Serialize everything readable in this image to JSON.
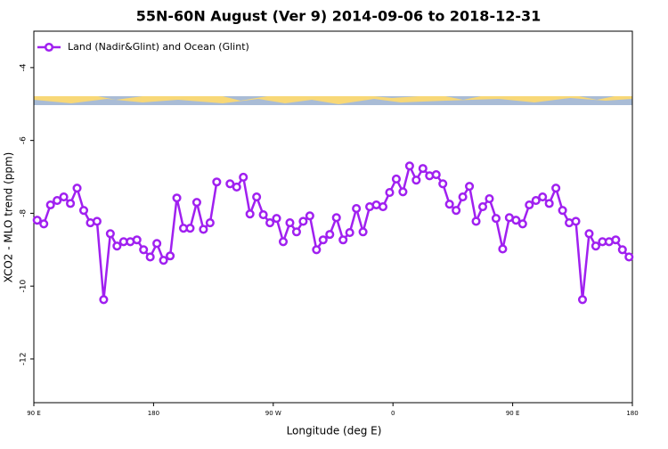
{
  "chart_data": {
    "type": "line",
    "title": "55N-60N August (Ver 9)   2014-09-06 to 2018-12-31",
    "x_label": "Longitude (deg E)",
    "y_label": "XCO2 - MLO trend (ppm)",
    "x": [
      92.5,
      97.5,
      102.5,
      107.5,
      112.5,
      117.5,
      122.5,
      127.5,
      132.5,
      137.5,
      142.5,
      147.5,
      152.5,
      157.5,
      162.5,
      167.5,
      172.5,
      177.5,
      182.5,
      187.5,
      192.5,
      197.5,
      202.5,
      207.5,
      212.5,
      217.5,
      222.5,
      227.5,
      232.5,
      237.5,
      242.5,
      247.5,
      252.5,
      257.5,
      262.5,
      267.5,
      272.5,
      277.5,
      282.5,
      287.5,
      292.5,
      297.5,
      302.5,
      307.5,
      312.5,
      317.5,
      322.5,
      327.5,
      332.5,
      337.5,
      342.5,
      347.5,
      352.5,
      357.5,
      362.5,
      367.5,
      372.5,
      377.5,
      382.5,
      387.5,
      392.5,
      397.5,
      402.5,
      407.5,
      412.5,
      417.5,
      422.5,
      427.5,
      432.5,
      437.5,
      442.5,
      447.5,
      452.5,
      457.5,
      462.5,
      467.5,
      472.5,
      477.5,
      482.5,
      487.5,
      492.5,
      497.5,
      502.5,
      507.5,
      512.5,
      517.5,
      522.5,
      527.5,
      532.5,
      537.5
    ],
    "series": [
      {
        "name": "Land (Nadir&Glint) and Ocean (Glint)",
        "color": "#a020f0",
        "values": [
          -8.19,
          -8.29,
          -7.77,
          -7.65,
          -7.55,
          -7.73,
          -7.31,
          -7.92,
          -8.26,
          -8.22,
          -10.37,
          -8.56,
          -8.9,
          -8.78,
          -8.78,
          -8.73,
          -9.0,
          -9.2,
          -8.83,
          -9.29,
          -9.17,
          -7.58,
          -8.41,
          -8.41,
          -7.7,
          -8.44,
          -8.26,
          -7.14,
          null,
          -7.19,
          -7.28,
          -7.01,
          -8.02,
          -7.55,
          -8.04,
          -8.26,
          -8.14,
          -8.78,
          -8.26,
          -8.51,
          -8.22,
          -8.07,
          -9.0,
          -8.73,
          -8.58,
          -8.12,
          -8.73,
          -8.53,
          -7.87,
          -8.51,
          -7.82,
          -7.77,
          -7.82,
          -7.43,
          -7.06,
          -7.41,
          -6.7,
          -7.09,
          -6.77,
          -6.97,
          -6.94,
          -7.19,
          -7.75,
          -7.92,
          -7.55,
          -7.26,
          -8.22,
          -7.82,
          -7.6,
          -8.14,
          -8.98,
          -8.12,
          -8.19,
          -8.29,
          -7.77,
          -7.65,
          -7.55,
          -7.73,
          -7.31,
          -7.92,
          -8.26,
          -8.22,
          -10.37,
          -8.56,
          -8.9,
          -8.78,
          -8.78,
          -8.73,
          -9.0,
          -9.2
        ]
      }
    ],
    "xlim": [
      90,
      540
    ],
    "xticks": [
      {
        "value": 90,
        "label": "90 E"
      },
      {
        "value": 180,
        "label": "180"
      },
      {
        "value": 270,
        "label": "90 W"
      },
      {
        "value": 360,
        "label": "0"
      },
      {
        "value": 450,
        "label": "90 E"
      },
      {
        "value": 540,
        "label": "180"
      }
    ],
    "ylim": [
      -13.2,
      -3.0
    ],
    "yticks": [
      -4,
      -6,
      -8,
      -10,
      -12
    ],
    "legend": "top-left"
  }
}
